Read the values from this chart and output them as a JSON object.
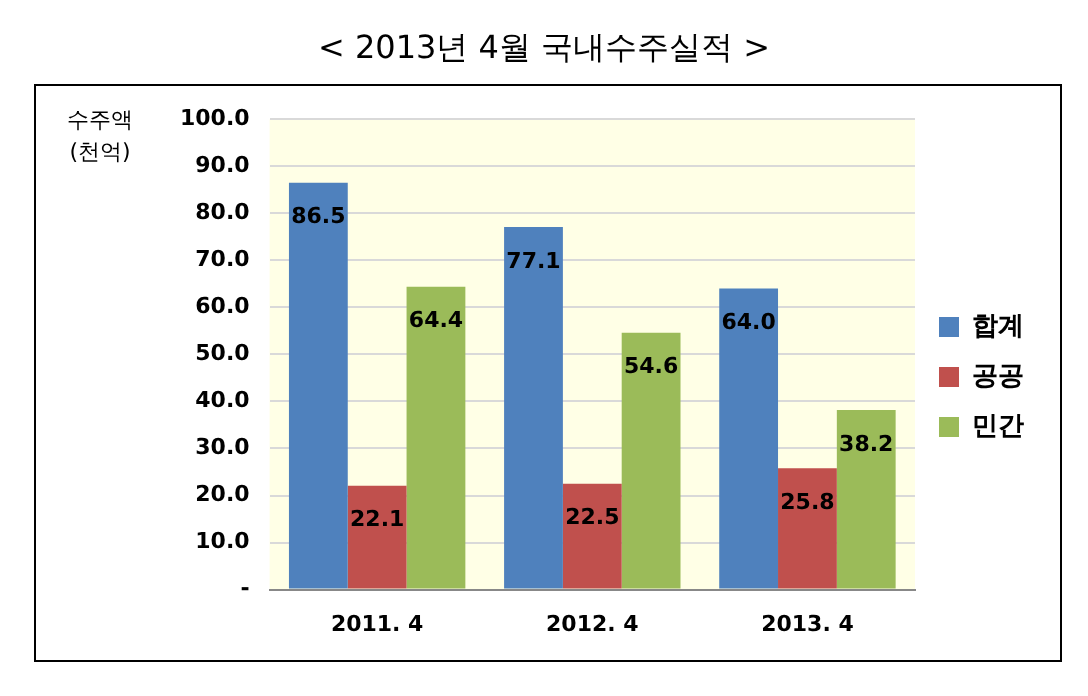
{
  "chart_data": {
    "type": "bar",
    "title": "< 2013년  4월  국내수주실적 >",
    "ylabel": "수주액\n(천억)",
    "categories": [
      "2011. 4",
      "2012. 4",
      "2013. 4"
    ],
    "series": [
      {
        "name": "합계",
        "color": "#4f81bd",
        "values": [
          86.5,
          77.1,
          64.0
        ],
        "value_labels": [
          "86.5",
          "77.1",
          "64.0"
        ]
      },
      {
        "name": "공공",
        "color": "#c0504d",
        "values": [
          22.1,
          22.5,
          25.8
        ],
        "value_labels": [
          "22.1",
          "22.5",
          "25.8"
        ]
      },
      {
        "name": "민간",
        "color": "#9bbb59",
        "values": [
          64.4,
          54.6,
          38.2
        ],
        "value_labels": [
          "64.4",
          "54.6",
          "38.2"
        ]
      }
    ],
    "ylim": [
      0,
      100
    ],
    "yticks": [
      {
        "value": 0,
        "label": "-"
      },
      {
        "value": 10,
        "label": "10.0"
      },
      {
        "value": 20,
        "label": "20.0"
      },
      {
        "value": 30,
        "label": "30.0"
      },
      {
        "value": 40,
        "label": "40.0"
      },
      {
        "value": 50,
        "label": "50.0"
      },
      {
        "value": 60,
        "label": "60.0"
      },
      {
        "value": 70,
        "label": "70.0"
      },
      {
        "value": 80,
        "label": "80.0"
      },
      {
        "value": 90,
        "label": "90.0"
      },
      {
        "value": 100,
        "label": "100.0"
      }
    ],
    "grid": "y",
    "legend": "right"
  }
}
